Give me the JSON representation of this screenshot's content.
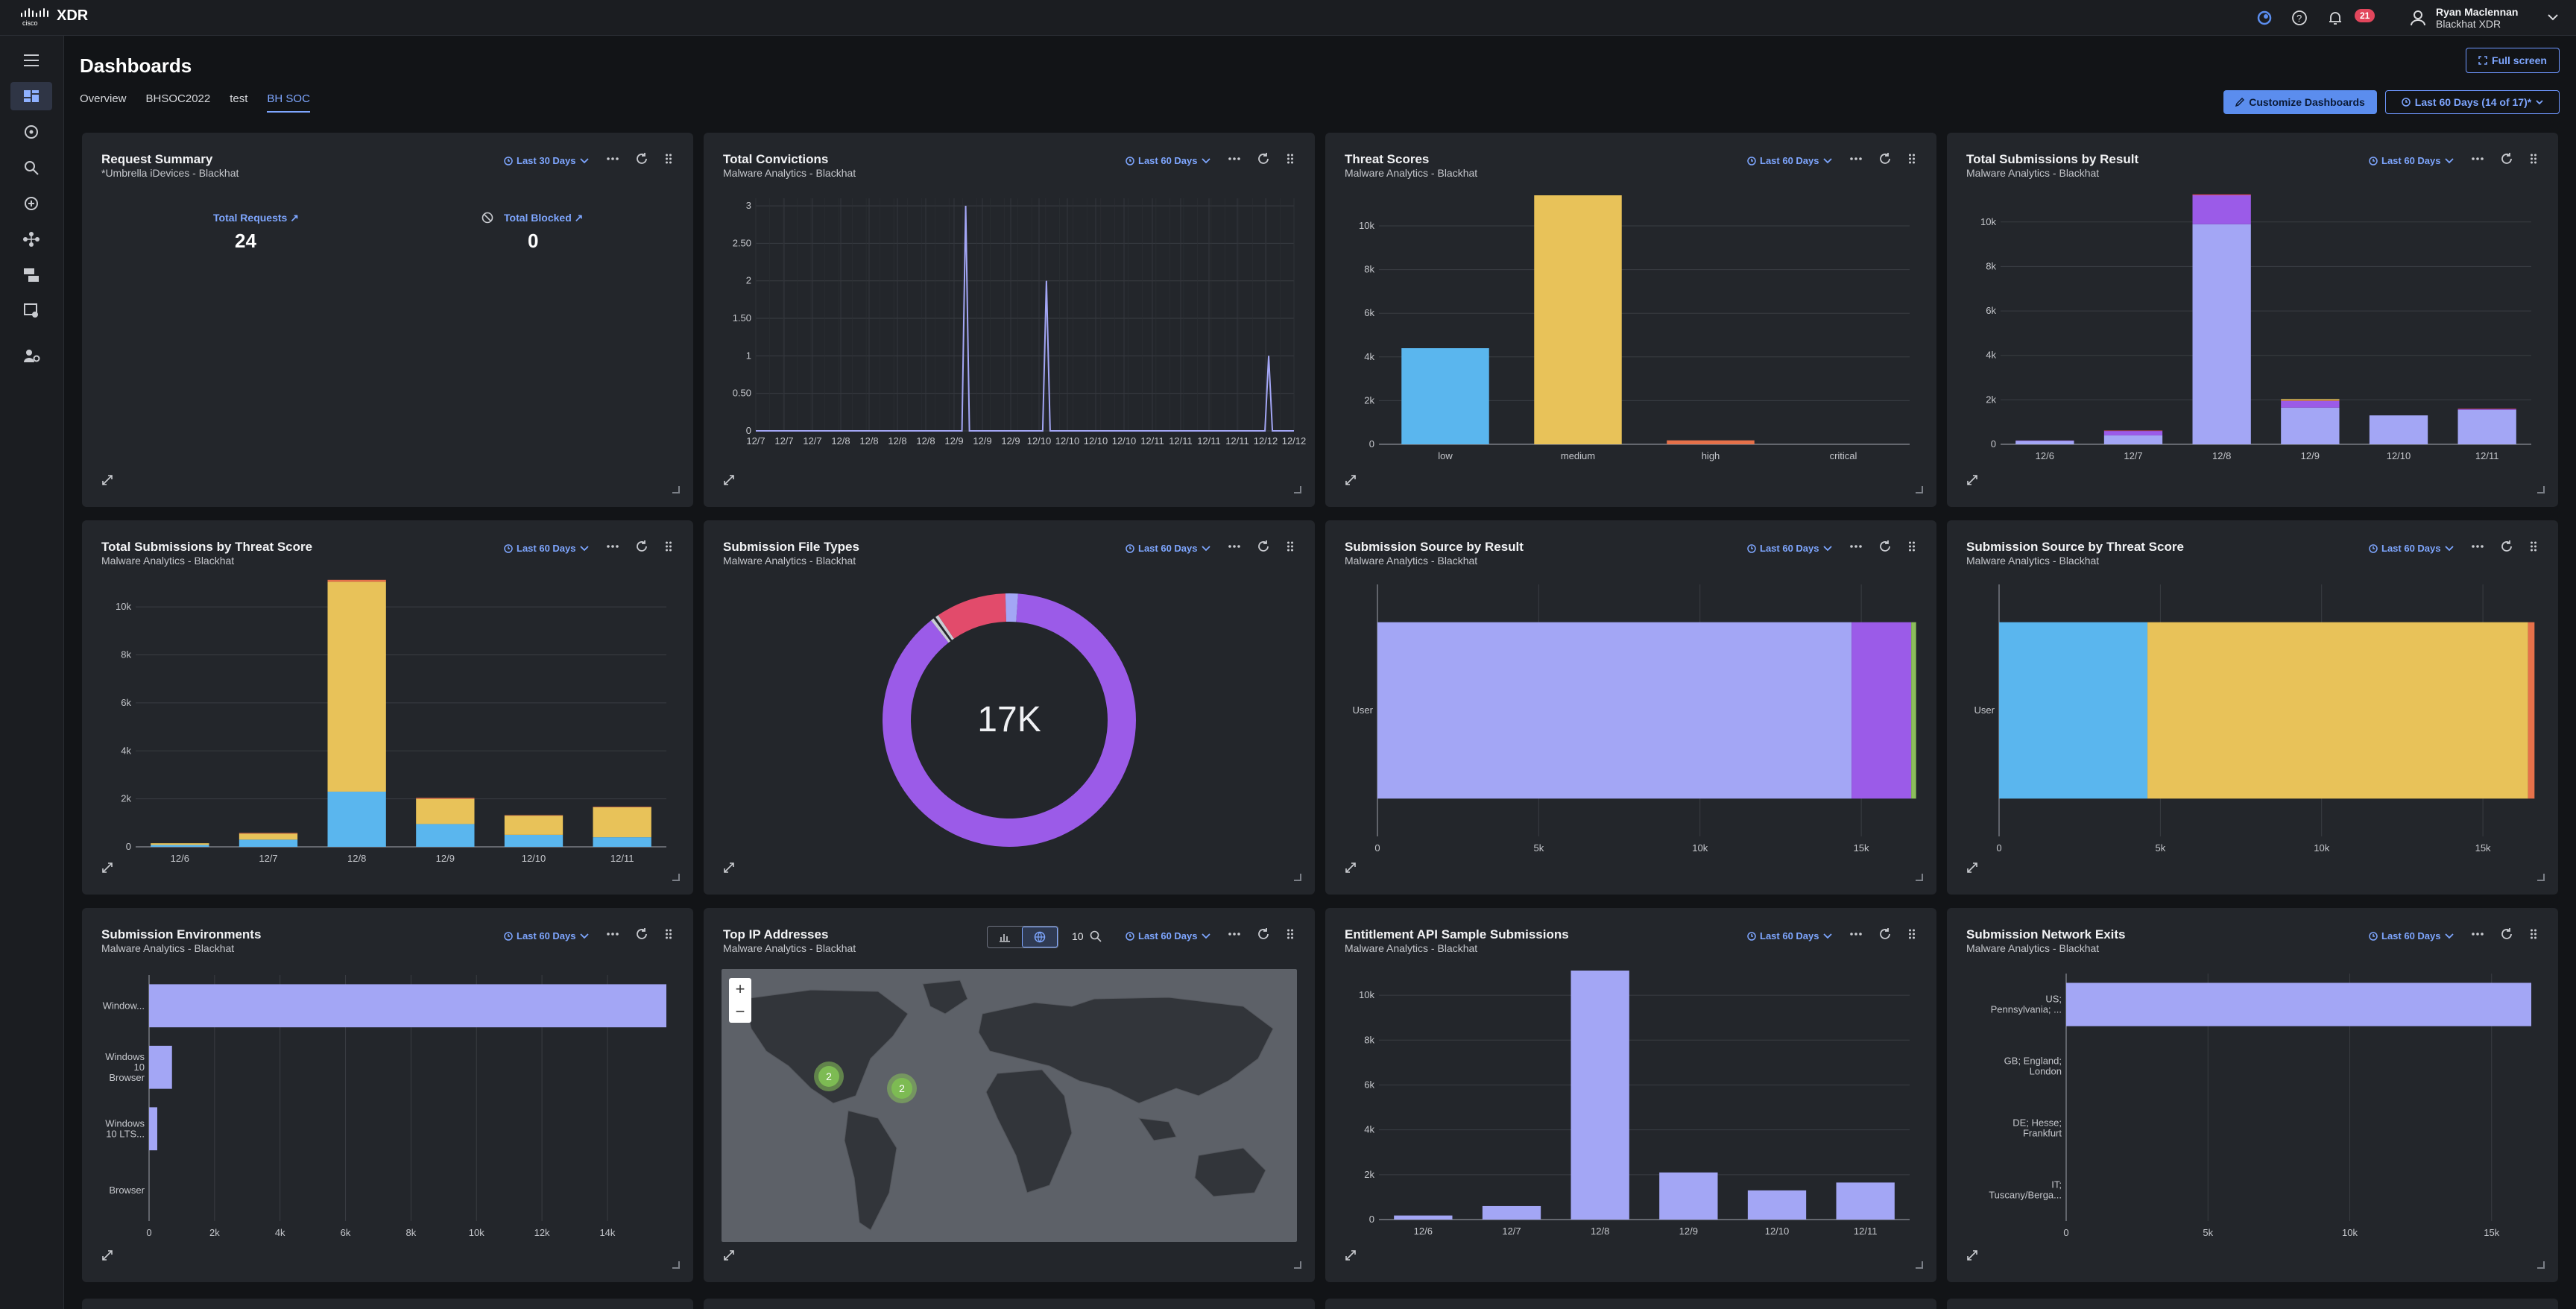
{
  "app": {
    "brand": "XDR",
    "notifications": "21"
  },
  "user": {
    "name": "Ryan Maclennan",
    "org": "Blackhat XDR"
  },
  "page": {
    "title": "Dashboards"
  },
  "tabs": [
    {
      "label": "Overview"
    },
    {
      "label": "BHSOC2022"
    },
    {
      "label": "test"
    },
    {
      "label": "BH SOC"
    }
  ],
  "header": {
    "full_screen": "Full screen",
    "customize": "Customize Dashboards",
    "range": "Last 60 Days (14 of 17)*"
  },
  "colors": {
    "low": "#5ab6ee",
    "medium": "#e8c259",
    "high": "#e6714a",
    "critical": "#e24b6b",
    "lavender": "#a3a6f5",
    "purple": "#9b5be8"
  },
  "cards": {
    "request_summary": {
      "title": "Request Summary",
      "subtitle": "*Umbrella iDevices - Blackhat",
      "range": "Last 30 Days",
      "total_requests_label": "Total Requests",
      "total_requests": "24",
      "total_blocked_label": "Total Blocked",
      "total_blocked": "0"
    },
    "total_convictions": {
      "title": "Total Convictions",
      "subtitle": "Malware Analytics - Blackhat",
      "range": "Last 60 Days"
    },
    "threat_scores": {
      "title": "Threat Scores",
      "subtitle": "Malware Analytics - Blackhat",
      "range": "Last 60 Days"
    },
    "subs_by_result": {
      "title": "Total Submissions by Result",
      "subtitle": "Malware Analytics - Blackhat",
      "range": "Last 60 Days"
    },
    "subs_by_threat": {
      "title": "Total Submissions by Threat Score",
      "subtitle": "Malware Analytics - Blackhat",
      "range": "Last 60 Days"
    },
    "file_types": {
      "title": "Submission File Types",
      "subtitle": "Malware Analytics - Blackhat",
      "range": "Last 60 Days",
      "center": "17K"
    },
    "source_by_result": {
      "title": "Submission Source by Result",
      "subtitle": "Malware Analytics - Blackhat",
      "range": "Last 60 Days"
    },
    "source_by_threat": {
      "title": "Submission Source by Threat Score",
      "subtitle": "Malware Analytics - Blackhat",
      "range": "Last 60 Days"
    },
    "environments": {
      "title": "Submission Environments",
      "subtitle": "Malware Analytics - Blackhat",
      "range": "Last 60 Days"
    },
    "top_ip": {
      "title": "Top IP Addresses",
      "subtitle": "Malware Analytics - Blackhat",
      "range": "Last 60 Days",
      "zoom_count": "10",
      "clusters": [
        "2",
        "2"
      ]
    },
    "entitlement": {
      "title": "Entitlement API Sample Submissions",
      "subtitle": "Malware Analytics - Blackhat",
      "range": "Last 60 Days"
    },
    "network_exits": {
      "title": "Submission Network Exits",
      "subtitle": "Malware Analytics - Blackhat",
      "range": "Last 60 Days"
    }
  },
  "chart_data": [
    {
      "id": "total_convictions",
      "type": "line",
      "x": [
        "12/7",
        "12/7",
        "12/7",
        "12/8",
        "12/8",
        "12/8",
        "12/8",
        "12/9",
        "12/9",
        "12/9",
        "12/10",
        "12/10",
        "12/10",
        "12/10",
        "12/11",
        "12/11",
        "12/11",
        "12/11",
        "12/12",
        "12/12"
      ],
      "y_ticks": [
        "0",
        "0.50",
        "1",
        "1.50",
        "2",
        "2.50",
        "3"
      ],
      "ylim": [
        0,
        3.1
      ],
      "spikes": [
        {
          "at": 0.39,
          "value": 3
        },
        {
          "at": 0.54,
          "value": 2
        },
        {
          "at": 0.953,
          "value": 1
        }
      ]
    },
    {
      "id": "threat_scores",
      "type": "bar",
      "categories": [
        "low",
        "medium",
        "high",
        "critical"
      ],
      "values": [
        4400,
        11400,
        180,
        0
      ],
      "y_ticks": [
        "0",
        "2k",
        "4k",
        "6k",
        "8k",
        "10k"
      ],
      "ylim": [
        0,
        11400
      ]
    },
    {
      "id": "subs_by_result",
      "type": "bar",
      "categories": [
        "12/6",
        "12/7",
        "12/8",
        "12/9",
        "12/10",
        "12/11"
      ],
      "series": [
        {
          "color": "lavender",
          "values": [
            150,
            400,
            9900,
            1650,
            1300,
            1550
          ]
        },
        {
          "color": "purple",
          "values": [
            20,
            200,
            1300,
            300,
            0,
            30
          ]
        },
        {
          "color": "critical",
          "values": [
            0,
            20,
            40,
            20,
            0,
            20
          ]
        },
        {
          "color": "medium",
          "values": [
            0,
            0,
            0,
            60,
            0,
            0
          ]
        }
      ],
      "y_ticks": [
        "0",
        "2k",
        "4k",
        "6k",
        "8k",
        "10k"
      ],
      "ylim": [
        0,
        11200
      ]
    },
    {
      "id": "subs_by_threat",
      "type": "bar",
      "categories": [
        "12/6",
        "12/7",
        "12/8",
        "12/9",
        "12/10",
        "12/11"
      ],
      "series": [
        {
          "color": "low",
          "values": [
            80,
            300,
            2300,
            950,
            500,
            400
          ]
        },
        {
          "color": "medium",
          "values": [
            70,
            250,
            8750,
            1050,
            800,
            1250
          ]
        },
        {
          "color": "high",
          "values": [
            0,
            30,
            80,
            40,
            20,
            20
          ]
        }
      ],
      "y_ticks": [
        "0",
        "2k",
        "4k",
        "6k",
        "8k",
        "10k"
      ],
      "ylim": [
        0,
        11000
      ]
    },
    {
      "id": "file_types",
      "type": "pie",
      "slices": [
        {
          "color": "#9b5be8",
          "value": 88.3
        },
        {
          "color": "#c9ccd4",
          "value": 0.4
        },
        {
          "color": "#23262b",
          "value": 0.3
        },
        {
          "color": "#c9ccd4",
          "value": 0.4
        },
        {
          "color": "#e24b6b",
          "value": 9.0
        },
        {
          "color": "#a3a6f5",
          "value": 1.6
        }
      ]
    },
    {
      "id": "source_by_result",
      "type": "bar",
      "orientation": "horizontal",
      "categories": [
        "User"
      ],
      "series": [
        {
          "color": "lavender",
          "values": [
            14700
          ]
        },
        {
          "color": "purple",
          "values": [
            1850
          ]
        },
        {
          "color": "#8bbd5b",
          "values": [
            150
          ]
        }
      ],
      "x_ticks": [
        "0",
        "5k",
        "10k",
        "15k"
      ],
      "xlim": [
        0,
        16500
      ]
    },
    {
      "id": "source_by_threat",
      "type": "bar",
      "orientation": "horizontal",
      "categories": [
        "User"
      ],
      "series": [
        {
          "color": "low",
          "values": [
            4600
          ]
        },
        {
          "color": "medium",
          "values": [
            11800
          ]
        },
        {
          "color": "high",
          "values": [
            200
          ]
        }
      ],
      "x_ticks": [
        "0",
        "5k",
        "10k",
        "15k"
      ],
      "xlim": [
        0,
        16500
      ]
    },
    {
      "id": "environments",
      "type": "bar",
      "orientation": "horizontal",
      "categories": [
        "Window...",
        "Windows 10 Browser",
        "Windows 10 LTS...",
        "Browser"
      ],
      "category_lines": [
        [
          "Window..."
        ],
        [
          "Windows",
          "10",
          "Browser"
        ],
        [
          "Windows",
          "10 LTS..."
        ],
        [
          "Browser"
        ]
      ],
      "values": [
        15800,
        700,
        250,
        0
      ],
      "x_ticks": [
        "0",
        "2k",
        "4k",
        "6k",
        "8k",
        "10k",
        "12k",
        "14k"
      ],
      "xlim": [
        0,
        15800
      ]
    },
    {
      "id": "entitlement",
      "type": "bar",
      "categories": [
        "12/6",
        "12/7",
        "12/8",
        "12/9",
        "12/10",
        "12/11"
      ],
      "values": [
        180,
        600,
        11100,
        2100,
        1300,
        1650
      ],
      "y_ticks": [
        "0",
        "2k",
        "4k",
        "6k",
        "8k",
        "10k"
      ],
      "ylim": [
        0,
        11100
      ]
    },
    {
      "id": "network_exits",
      "type": "bar",
      "orientation": "horizontal",
      "categories": [
        "US; Pennsylvania; ...",
        "GB; England; London",
        "DE; Hesse; Frankfurt",
        "IT; Tuscany/Berga..."
      ],
      "category_lines": [
        [
          "US;",
          "Pennsylvania; ..."
        ],
        [
          "GB; England;",
          "London"
        ],
        [
          "DE; Hesse;",
          "Frankfurt"
        ],
        [
          "IT;",
          "Tuscany/Berga..."
        ]
      ],
      "values": [
        16400,
        0,
        0,
        0
      ],
      "x_ticks": [
        "0",
        "5k",
        "10k",
        "15k"
      ],
      "xlim": [
        0,
        16400
      ]
    }
  ]
}
